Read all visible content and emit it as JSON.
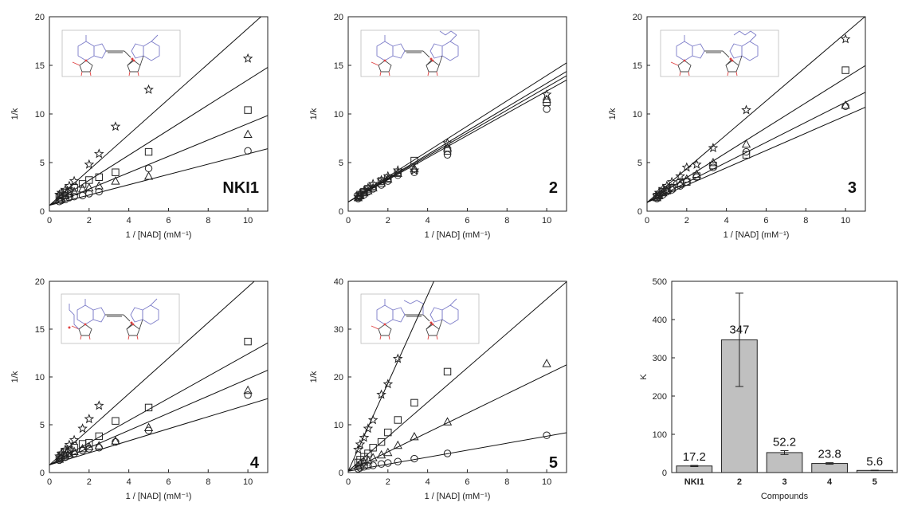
{
  "chart_data": [
    {
      "type": "scatter",
      "compound": "NKI1",
      "xlabel": "1 / [NAD] (mM⁻¹)",
      "ylabel": "1/k",
      "xlim": [
        0,
        11
      ],
      "ylim": [
        0,
        20
      ],
      "xticks": [
        0,
        2,
        4,
        6,
        8,
        10
      ],
      "yticks": [
        0,
        5,
        10,
        15,
        20
      ],
      "grid": false,
      "series": [
        {
          "marker": "circle",
          "x": [
            0.5,
            0.6,
            0.8,
            1,
            1.25,
            1.67,
            2,
            2.5,
            5,
            10
          ],
          "y": [
            1.0,
            1.1,
            1.2,
            1.4,
            1.5,
            1.6,
            1.8,
            2.0,
            4.4,
            6.2
          ],
          "fit": [
            0.6,
            0.53
          ]
        },
        {
          "marker": "triangle",
          "x": [
            0.5,
            0.6,
            0.8,
            1,
            1.25,
            1.67,
            2,
            2.5,
            3.33,
            5,
            10
          ],
          "y": [
            1.2,
            1.4,
            1.6,
            1.8,
            2.0,
            2.3,
            2.4,
            2.6,
            3.1,
            3.6,
            7.9
          ],
          "fit": [
            0.6,
            0.84
          ]
        },
        {
          "marker": "square",
          "x": [
            0.5,
            0.6,
            0.8,
            1,
            1.25,
            1.67,
            2,
            2.5,
            3.33,
            5,
            10
          ],
          "y": [
            1.4,
            1.6,
            1.9,
            2.1,
            2.4,
            2.8,
            3.2,
            3.5,
            4.0,
            6.1,
            10.4
          ],
          "fit": [
            0.6,
            1.29
          ]
        },
        {
          "marker": "star",
          "x": [
            0.5,
            0.6,
            0.8,
            1,
            1.25,
            2,
            2.5,
            3.33,
            5,
            10
          ],
          "y": [
            1.7,
            1.9,
            2.2,
            2.6,
            3.1,
            4.8,
            5.9,
            8.7,
            12.5,
            15.7
          ],
          "fit": [
            0.6,
            1.82
          ]
        }
      ]
    },
    {
      "type": "scatter",
      "compound": "2",
      "xlabel": "1 / [NAD] (mM⁻¹)",
      "ylabel": "1/k",
      "xlim": [
        0,
        11
      ],
      "ylim": [
        0,
        20
      ],
      "xticks": [
        0,
        2,
        4,
        6,
        8,
        10
      ],
      "yticks": [
        0,
        5,
        10,
        15,
        20
      ],
      "grid": false,
      "series": [
        {
          "marker": "circle",
          "x": [
            0.5,
            0.6,
            0.8,
            1,
            1.25,
            1.67,
            2,
            2.5,
            3.33,
            5,
            10
          ],
          "y": [
            1.3,
            1.5,
            1.7,
            2.0,
            2.3,
            2.7,
            3.1,
            3.7,
            4.0,
            5.8,
            10.5
          ],
          "fit": [
            0.95,
            1.14
          ]
        },
        {
          "marker": "triangle",
          "x": [
            0.5,
            0.6,
            0.8,
            1,
            1.25,
            1.67,
            2,
            2.5,
            3.33,
            5,
            10
          ],
          "y": [
            1.4,
            1.6,
            1.9,
            2.1,
            2.4,
            2.9,
            3.3,
            3.9,
            4.4,
            6.5,
            11.5
          ],
          "fit": [
            0.95,
            1.18
          ]
        },
        {
          "marker": "square",
          "x": [
            0.5,
            0.6,
            0.8,
            1,
            1.25,
            1.67,
            2,
            2.5,
            3.33,
            5,
            10
          ],
          "y": [
            1.5,
            1.7,
            2.0,
            2.3,
            2.6,
            3.1,
            3.4,
            4.0,
            5.2,
            6.2,
            11.2
          ],
          "fit": [
            0.95,
            1.22
          ]
        },
        {
          "marker": "star",
          "x": [
            0.5,
            0.6,
            0.8,
            1,
            1.25,
            1.67,
            2,
            2.5,
            3.33,
            5,
            10
          ],
          "y": [
            1.5,
            1.8,
            2.1,
            2.4,
            2.8,
            3.2,
            3.6,
            4.2,
            4.2,
            7.0,
            12.0
          ],
          "fit": [
            0.95,
            1.3
          ]
        }
      ]
    },
    {
      "type": "scatter",
      "compound": "3",
      "xlabel": "1 / [NAD] (mM⁻¹)",
      "ylabel": "1/k",
      "xlim": [
        0,
        11
      ],
      "ylim": [
        0,
        20
      ],
      "xticks": [
        0,
        2,
        4,
        6,
        8,
        10
      ],
      "yticks": [
        0,
        5,
        10,
        15,
        20
      ],
      "grid": false,
      "series": [
        {
          "marker": "circle",
          "x": [
            0.5,
            0.6,
            0.8,
            1,
            1.25,
            1.67,
            2,
            2.5,
            3.33,
            5,
            10
          ],
          "y": [
            1.3,
            1.5,
            1.7,
            2.0,
            2.2,
            2.6,
            3.0,
            3.5,
            4.5,
            6.1,
            10.8
          ],
          "fit": [
            0.9,
            0.89
          ]
        },
        {
          "marker": "triangle",
          "x": [
            0.5,
            0.6,
            0.8,
            1,
            1.25,
            1.67,
            2,
            2.5,
            3.33,
            5,
            10
          ],
          "y": [
            1.4,
            1.6,
            1.9,
            2.1,
            2.4,
            2.8,
            3.3,
            3.8,
            5.0,
            6.9,
            10.9
          ],
          "fit": [
            0.9,
            1.03
          ]
        },
        {
          "marker": "square",
          "x": [
            0.5,
            0.6,
            0.8,
            1,
            1.25,
            1.67,
            2,
            2.5,
            3.33,
            5,
            10
          ],
          "y": [
            1.5,
            1.7,
            2.0,
            2.2,
            2.4,
            2.9,
            3.0,
            3.6,
            4.7,
            5.8,
            14.5
          ],
          "fit": [
            0.9,
            1.28
          ]
        },
        {
          "marker": "star",
          "x": [
            0.5,
            0.6,
            0.8,
            1,
            1.25,
            1.67,
            2,
            2.5,
            3.33,
            5,
            10
          ],
          "y": [
            1.6,
            1.9,
            2.3,
            2.6,
            3.0,
            3.6,
            4.5,
            4.8,
            6.5,
            10.4,
            17.7
          ],
          "fit": [
            0.9,
            1.74
          ]
        }
      ]
    },
    {
      "type": "scatter",
      "compound": "4",
      "xlabel": "1 / [NAD] (mM⁻¹)",
      "ylabel": "1/k",
      "xlim": [
        0,
        11
      ],
      "ylim": [
        0,
        20
      ],
      "xticks": [
        0,
        2,
        4,
        6,
        8,
        10
      ],
      "yticks": [
        0,
        5,
        10,
        15,
        20
      ],
      "grid": false,
      "series": [
        {
          "marker": "circle",
          "x": [
            0.5,
            0.6,
            0.8,
            1,
            1.25,
            1.67,
            2,
            2.5,
            3.33,
            5,
            10
          ],
          "y": [
            1.3,
            1.5,
            1.6,
            1.8,
            2.0,
            2.3,
            2.5,
            2.6,
            3.2,
            4.4,
            8.1
          ],
          "fit": [
            0.8,
            0.63
          ]
        },
        {
          "marker": "triangle",
          "x": [
            0.5,
            0.6,
            0.8,
            1,
            1.25,
            1.67,
            2,
            2.5,
            3.33,
            5,
            10
          ],
          "y": [
            1.4,
            1.6,
            1.8,
            2.0,
            2.2,
            2.5,
            2.7,
            2.8,
            3.3,
            4.7,
            8.6
          ],
          "fit": [
            0.8,
            0.9
          ]
        },
        {
          "marker": "square",
          "x": [
            0.5,
            0.6,
            0.8,
            1,
            1.25,
            1.67,
            2,
            2.5,
            3.33,
            5,
            10
          ],
          "y": [
            1.5,
            1.8,
            2.1,
            2.4,
            2.6,
            3.0,
            3.1,
            3.8,
            5.4,
            6.8,
            13.7
          ],
          "fit": [
            0.8,
            1.16
          ]
        },
        {
          "marker": "star",
          "x": [
            0.5,
            0.6,
            0.8,
            1,
            1.25,
            1.67,
            2,
            2.5
          ],
          "y": [
            1.7,
            2.0,
            2.4,
            2.9,
            3.4,
            4.6,
            5.6,
            7.0
          ],
          "fit": [
            0.8,
            1.86
          ]
        }
      ]
    },
    {
      "type": "scatter",
      "compound": "5",
      "xlabel": "1 / [NAD] (mM⁻¹)",
      "ylabel": "1/k",
      "xlim": [
        0,
        11
      ],
      "ylim": [
        0,
        40
      ],
      "xticks": [
        0,
        2,
        4,
        6,
        8,
        10
      ],
      "yticks": [
        0,
        10,
        20,
        30,
        40
      ],
      "grid": false,
      "series": [
        {
          "marker": "circle",
          "x": [
            0.5,
            0.6,
            0.8,
            1,
            1.25,
            1.67,
            2,
            2.5,
            3.33,
            5,
            10
          ],
          "y": [
            0.8,
            1.0,
            1.2,
            1.4,
            1.5,
            1.8,
            2.0,
            2.3,
            2.9,
            4.0,
            7.8
          ],
          "fit": [
            0.3,
            0.73
          ]
        },
        {
          "marker": "triangle",
          "x": [
            0.5,
            0.6,
            0.8,
            1,
            1.25,
            1.67,
            2,
            2.5,
            3.33,
            5,
            10
          ],
          "y": [
            1.5,
            1.8,
            2.2,
            2.6,
            3.1,
            3.7,
            4.2,
            5.7,
            7.5,
            10.6,
            22.8
          ],
          "fit": [
            0.3,
            2.02
          ]
        },
        {
          "marker": "square",
          "x": [
            0.5,
            0.6,
            0.8,
            1,
            1.25,
            1.67,
            2,
            2.5,
            3.33,
            5
          ],
          "y": [
            2.1,
            2.7,
            3.3,
            4.0,
            5.2,
            6.4,
            8.4,
            11.0,
            14.6,
            21.1
          ],
          "fit": [
            0.3,
            3.6
          ]
        },
        {
          "marker": "star",
          "x": [
            0.5,
            0.6,
            0.8,
            1,
            1.25,
            1.67,
            2,
            2.5
          ],
          "y": [
            4.8,
            5.9,
            7.3,
            9.2,
            11.0,
            16.3,
            18.5,
            23.8
          ],
          "fit": [
            0.3,
            9.2
          ]
        }
      ]
    },
    {
      "type": "bar",
      "xlabel": "Compounds",
      "ylabel": "K",
      "categories": [
        "NKI1",
        "2",
        "3",
        "4",
        "5"
      ],
      "values": [
        17.2,
        347,
        52.2,
        23.8,
        5.6
      ],
      "value_labels": [
        "17.2",
        "347",
        "52.2",
        "23.8",
        "5.6"
      ],
      "errors": [
        1.5,
        122,
        5,
        2,
        0.5
      ],
      "ylim": [
        0,
        500
      ],
      "yticks": [
        0,
        100,
        200,
        300,
        400,
        500
      ],
      "grid": false,
      "bar_color": "#c0c0c0"
    }
  ],
  "molecule_colors": {
    "nitrogen": "#7b7bc8",
    "oxygen": "#e04040",
    "bond": "#444444"
  }
}
